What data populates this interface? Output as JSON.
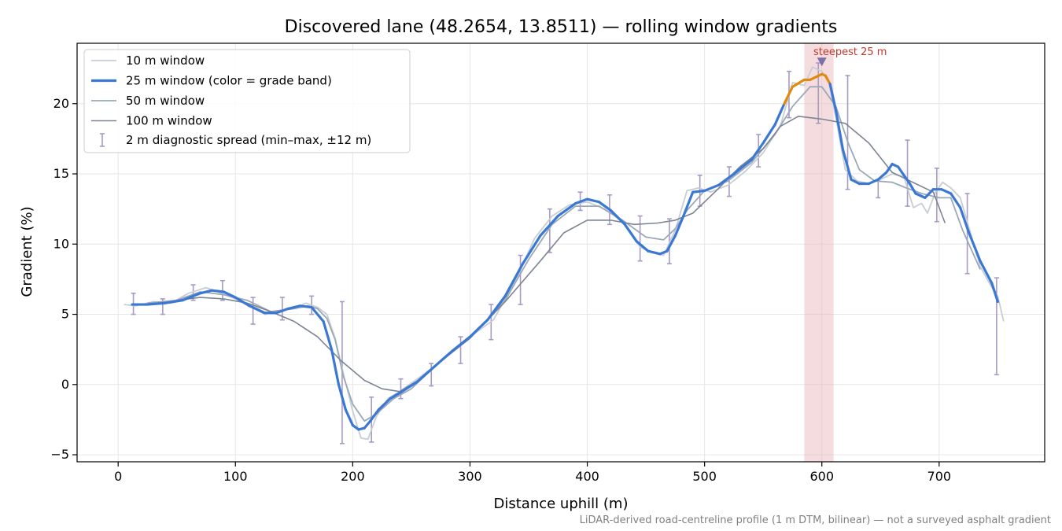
{
  "chart_data": {
    "type": "line",
    "title": "Discovered lane (48.2654, 13.8511) — rolling window gradients",
    "xlabel": "Distance uphill (m)",
    "ylabel": "Gradient (%)",
    "xlim": [
      -35,
      790
    ],
    "ylim": [
      -5.5,
      24.3
    ],
    "xticks": [
      0,
      100,
      200,
      300,
      400,
      500,
      600,
      700
    ],
    "yticks": [
      -5,
      0,
      5,
      10,
      15,
      20
    ],
    "grid": true,
    "legend_position": "top-left",
    "footnote": "LiDAR-derived road-centreline profile (1 m DTM, bilinear) — not a surveyed asphalt gradient",
    "colors": {
      "w10": "#c8cdd4",
      "w25": "#3a78d4",
      "w25_steep": "#e08a0f",
      "w50": "#9aa8b8",
      "w100": "#7d8593",
      "errorbar": "#a79ac4",
      "highlight": "#e8b3b8",
      "annotation": "#c0392b"
    },
    "steep_threshold": 20,
    "highlight": {
      "x0": 585,
      "x1": 610,
      "label": "steepest 25 m",
      "marker_x": 600,
      "marker_y": 23.0
    },
    "series": [
      {
        "name": "10 m window",
        "x": [
          5,
          15,
          30,
          45,
          60,
          75,
          85,
          100,
          110,
          125,
          140,
          150,
          160,
          170,
          178,
          185,
          192,
          200,
          207,
          213,
          220,
          230,
          240,
          255,
          270,
          285,
          300,
          320,
          340,
          355,
          370,
          385,
          400,
          415,
          430,
          445,
          455,
          465,
          475,
          485,
          495,
          505,
          520,
          535,
          550,
          565,
          575,
          585,
          592,
          600,
          606,
          612,
          620,
          630,
          640,
          650,
          660,
          670,
          678,
          685,
          690,
          697,
          703,
          710,
          718,
          725,
          735,
          745,
          750,
          755
        ],
        "y": [
          5.7,
          5.6,
          5.9,
          5.8,
          6.5,
          6.9,
          6.6,
          6.1,
          5.7,
          5.0,
          5.3,
          5.4,
          5.8,
          5.5,
          5.0,
          3.3,
          0.8,
          -1.9,
          -3.8,
          -3.9,
          -2.3,
          -1.0,
          -0.5,
          0.4,
          1.3,
          2.4,
          3.4,
          4.6,
          7.6,
          10.4,
          12.0,
          12.8,
          13.0,
          12.5,
          11.6,
          9.8,
          9.4,
          9.2,
          11.0,
          13.8,
          14.0,
          13.7,
          14.2,
          15.2,
          16.5,
          18.5,
          21.5,
          21.3,
          22.6,
          22.3,
          21.5,
          19.0,
          15.3,
          14.5,
          14.3,
          14.6,
          15.0,
          14.8,
          12.6,
          12.9,
          12.2,
          13.7,
          14.4,
          14.0,
          13.3,
          11.3,
          8.4,
          6.9,
          6.3,
          4.5
        ]
      },
      {
        "name": "25 m window (color = grade band)",
        "x": [
          12,
          25,
          40,
          55,
          70,
          80,
          90,
          100,
          112,
          125,
          135,
          145,
          155,
          165,
          175,
          182,
          188,
          194,
          200,
          205,
          210,
          215,
          222,
          232,
          242,
          255,
          270,
          285,
          300,
          315,
          330,
          345,
          360,
          375,
          390,
          400,
          410,
          420,
          432,
          442,
          452,
          462,
          468,
          475,
          482,
          490,
          500,
          512,
          525,
          540,
          550,
          560,
          568,
          575,
          585,
          590,
          595,
          600,
          603,
          607,
          612,
          618,
          625,
          632,
          640,
          648,
          655,
          660,
          665,
          670,
          675,
          680,
          688,
          695,
          702,
          710,
          718,
          725,
          735,
          745,
          750
        ],
        "y": [
          5.7,
          5.7,
          5.8,
          6.0,
          6.5,
          6.7,
          6.6,
          6.2,
          5.6,
          5.1,
          5.1,
          5.4,
          5.6,
          5.5,
          4.5,
          2.5,
          0.0,
          -1.8,
          -2.9,
          -3.2,
          -3.1,
          -2.6,
          -1.8,
          -1.0,
          -0.5,
          0.2,
          1.3,
          2.4,
          3.4,
          4.6,
          6.3,
          8.6,
          10.6,
          12.0,
          12.9,
          13.2,
          13.0,
          12.4,
          11.4,
          10.2,
          9.5,
          9.3,
          9.5,
          10.6,
          12.0,
          13.7,
          13.8,
          14.2,
          15.0,
          16.0,
          17.2,
          18.5,
          20.0,
          21.2,
          21.7,
          21.7,
          21.9,
          22.1,
          22.0,
          21.4,
          19.5,
          16.7,
          14.6,
          14.3,
          14.3,
          14.6,
          15.1,
          15.7,
          15.5,
          14.9,
          14.3,
          13.6,
          13.3,
          13.9,
          13.9,
          13.6,
          12.6,
          10.9,
          8.8,
          7.2,
          5.9
        ]
      },
      {
        "name": "50 m window",
        "x": [
          25,
          50,
          70,
          90,
          110,
          130,
          150,
          162,
          170,
          178,
          185,
          192,
          200,
          210,
          220,
          235,
          250,
          270,
          300,
          330,
          350,
          370,
          390,
          410,
          430,
          450,
          465,
          475,
          485,
          500,
          520,
          540,
          560,
          575,
          590,
          600,
          612,
          622,
          632,
          645,
          660,
          672,
          685,
          700,
          710,
          720,
          735
        ],
        "y": [
          5.8,
          6.0,
          6.6,
          6.4,
          6.0,
          5.2,
          5.4,
          5.6,
          5.4,
          4.7,
          3.2,
          0.6,
          -1.4,
          -2.6,
          -2.1,
          -1.0,
          -0.3,
          1.3,
          3.3,
          6.0,
          8.9,
          11.4,
          12.7,
          12.7,
          11.7,
          10.5,
          10.3,
          11.1,
          12.4,
          13.8,
          14.5,
          15.8,
          17.8,
          19.8,
          21.2,
          21.2,
          19.8,
          17.3,
          15.3,
          14.5,
          14.4,
          14.0,
          13.6,
          13.3,
          13.3,
          11.0,
          8.2
        ]
      },
      {
        "name": "100 m window",
        "x": [
          50,
          70,
          90,
          110,
          130,
          150,
          170,
          190,
          210,
          225,
          240,
          260,
          280,
          300,
          330,
          360,
          380,
          400,
          420,
          440,
          460,
          475,
          490,
          510,
          530,
          550,
          565,
          580,
          600,
          620,
          640,
          660,
          680,
          695,
          705
        ],
        "y": [
          6.0,
          6.2,
          6.1,
          5.8,
          5.2,
          4.5,
          3.4,
          1.7,
          0.3,
          -0.3,
          -0.5,
          0.5,
          2.0,
          3.3,
          5.9,
          8.8,
          10.8,
          11.7,
          11.7,
          11.4,
          11.5,
          11.7,
          12.2,
          13.8,
          15.5,
          16.8,
          18.4,
          19.1,
          18.9,
          18.6,
          17.2,
          15.1,
          14.3,
          13.7,
          11.5
        ]
      }
    ],
    "error_bars": {
      "name": "2 m diagnostic spread (min–max, ±12 m)",
      "x": [
        13,
        38,
        64,
        89,
        115,
        140,
        165,
        191,
        216,
        241,
        267,
        292,
        318,
        343,
        368,
        394,
        419,
        445,
        470,
        496,
        521,
        546,
        572,
        597,
        622,
        648,
        673,
        698,
        724,
        749
      ],
      "low": [
        5.0,
        5.0,
        6.0,
        6.0,
        4.3,
        4.6,
        5.0,
        -4.2,
        -4.1,
        -1.0,
        -0.1,
        1.5,
        3.2,
        5.7,
        9.4,
        12.4,
        11.4,
        8.8,
        8.6,
        12.7,
        13.4,
        15.5,
        19.0,
        18.6,
        13.9,
        13.3,
        12.7,
        11.6,
        7.9,
        0.7
      ],
      "high": [
        6.5,
        6.1,
        7.1,
        7.4,
        6.2,
        6.2,
        6.3,
        5.9,
        -0.9,
        0.4,
        1.5,
        3.4,
        5.7,
        9.2,
        12.5,
        13.7,
        13.5,
        12.0,
        11.8,
        14.9,
        15.5,
        17.8,
        22.3,
        22.9,
        22.0,
        14.5,
        17.4,
        15.4,
        13.6,
        7.6
      ]
    }
  }
}
